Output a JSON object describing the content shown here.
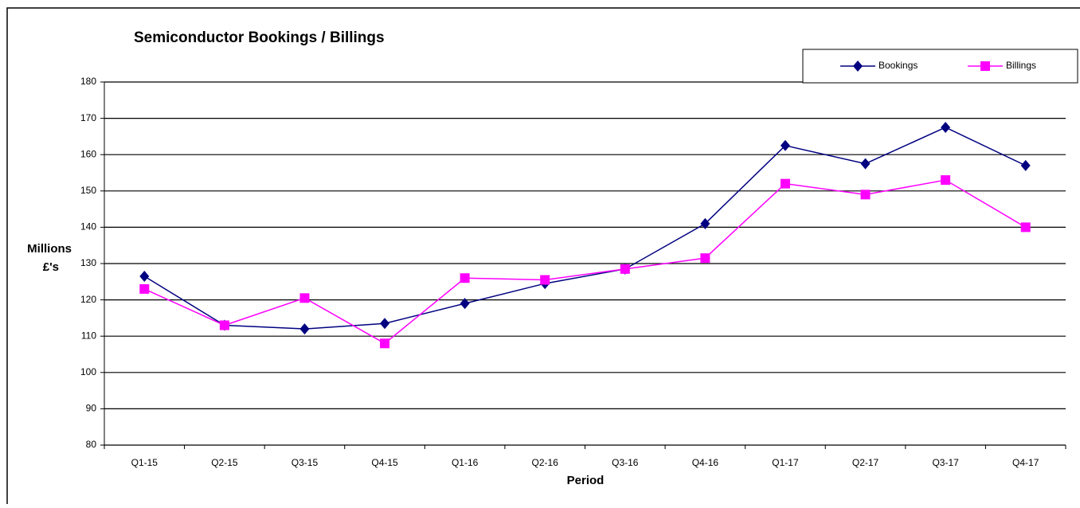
{
  "chart_data": {
    "type": "line",
    "title": "Semiconductor Bookings / Billings",
    "categories": [
      "Q1-15",
      "Q2-15",
      "Q3-15",
      "Q4-15",
      "Q1-16",
      "Q2-16",
      "Q3-16",
      "Q4-16",
      "Q1-17",
      "Q2-17",
      "Q3-17",
      "Q4-17"
    ],
    "series": [
      {
        "name": "Bookings",
        "color": "#000080",
        "marker": "diamond",
        "values": [
          126.5,
          113,
          112,
          113.5,
          119,
          124.5,
          128.5,
          141,
          162.5,
          157.5,
          167.5,
          157
        ]
      },
      {
        "name": "Billings",
        "color": "#ff00ff",
        "marker": "square",
        "values": [
          123,
          113,
          120.5,
          108,
          126,
          125.5,
          128.5,
          131.5,
          152,
          149,
          153,
          140
        ]
      }
    ],
    "ylabel": [
      "Millions",
      "£'s"
    ],
    "xlabel": "Period",
    "ylim": [
      80,
      180
    ],
    "yticks": [
      80,
      90,
      100,
      110,
      120,
      130,
      140,
      150,
      160,
      170,
      180
    ],
    "grid": true,
    "legend": "top-right"
  }
}
